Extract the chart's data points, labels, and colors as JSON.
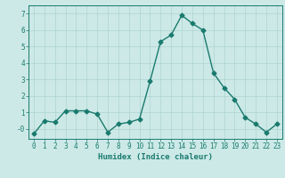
{
  "x": [
    0,
    1,
    2,
    3,
    4,
    5,
    6,
    7,
    8,
    9,
    10,
    11,
    12,
    13,
    14,
    15,
    16,
    17,
    18,
    19,
    20,
    21,
    22,
    23
  ],
  "y": [
    -0.3,
    0.5,
    0.4,
    1.1,
    1.1,
    1.1,
    0.9,
    -0.2,
    0.3,
    0.4,
    0.6,
    2.9,
    5.3,
    5.7,
    6.9,
    6.4,
    6.0,
    3.4,
    2.5,
    1.8,
    0.7,
    0.3,
    -0.2,
    0.3
  ],
  "line_color": "#1a7a6e",
  "marker": "D",
  "marker_size": 2.5,
  "bg_color": "#cce9e7",
  "grid_color": "#aed4d0",
  "xlabel": "Humidex (Indice chaleur)",
  "ylim": [
    -0.6,
    7.5
  ],
  "xlim": [
    -0.5,
    23.5
  ],
  "yticks": [
    0,
    1,
    2,
    3,
    4,
    5,
    6,
    7
  ],
  "ytick_labels": [
    "-0",
    "1",
    "2",
    "3",
    "4",
    "5",
    "6",
    "7"
  ],
  "xtick_labels": [
    "0",
    "1",
    "2",
    "3",
    "4",
    "5",
    "6",
    "7",
    "8",
    "9",
    "10",
    "11",
    "12",
    "13",
    "14",
    "15",
    "16",
    "17",
    "18",
    "19",
    "20",
    "21",
    "22",
    "23"
  ],
  "xlabel_fontsize": 6.5,
  "tick_fontsize": 5.5,
  "line_width": 1.0
}
